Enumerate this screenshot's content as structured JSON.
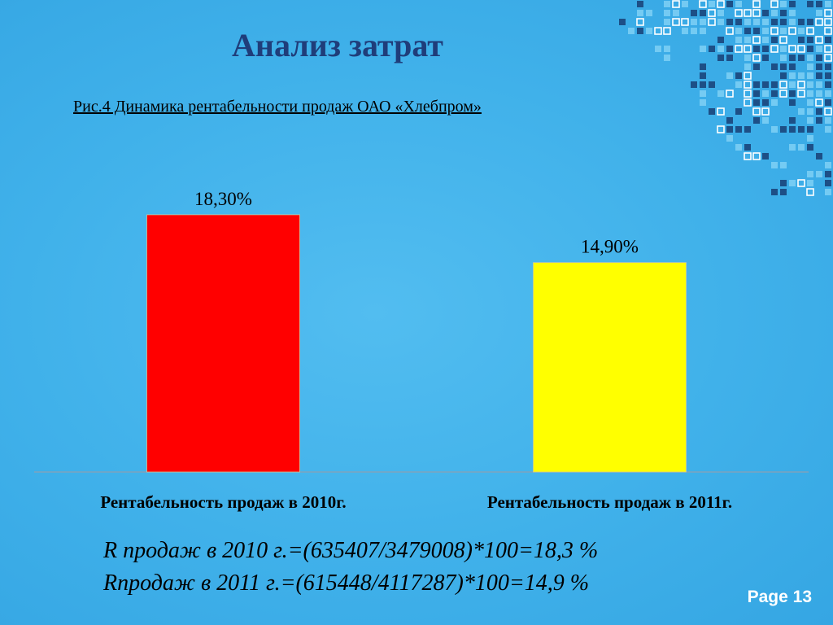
{
  "slide": {
    "title": "Анализ затрат",
    "caption": "Рис.4 Динамика рентабельности продаж ОАО «Хлебпром»",
    "formulas": [
      "R продаж в 2010 г.=(635407/3479008)*100=18,3 %",
      "Rпродаж в 2011 г.=(615448/4117287)*100=14,9 %"
    ],
    "page_label": "Page 13"
  },
  "colors": {
    "background": "#3fb0ea",
    "title": "#1f3d7a",
    "decor_dark": "#1d4f86",
    "decor_light": "#ffffff"
  },
  "chart_data": {
    "type": "bar",
    "title": "Рис.4 Динамика рентабельности продаж ОАО «Хлебпром»",
    "categories": [
      "Рентабельность  продаж в 2010г.",
      "Рентабельность  продаж в 2011г."
    ],
    "values": [
      18.3,
      14.9
    ],
    "data_labels": [
      "18,30%",
      "14,90%"
    ],
    "colors": [
      "#ff0000",
      "#ffff00"
    ],
    "unit": "%",
    "ylim": [
      0,
      22
    ],
    "grid": false,
    "legend": "none"
  }
}
